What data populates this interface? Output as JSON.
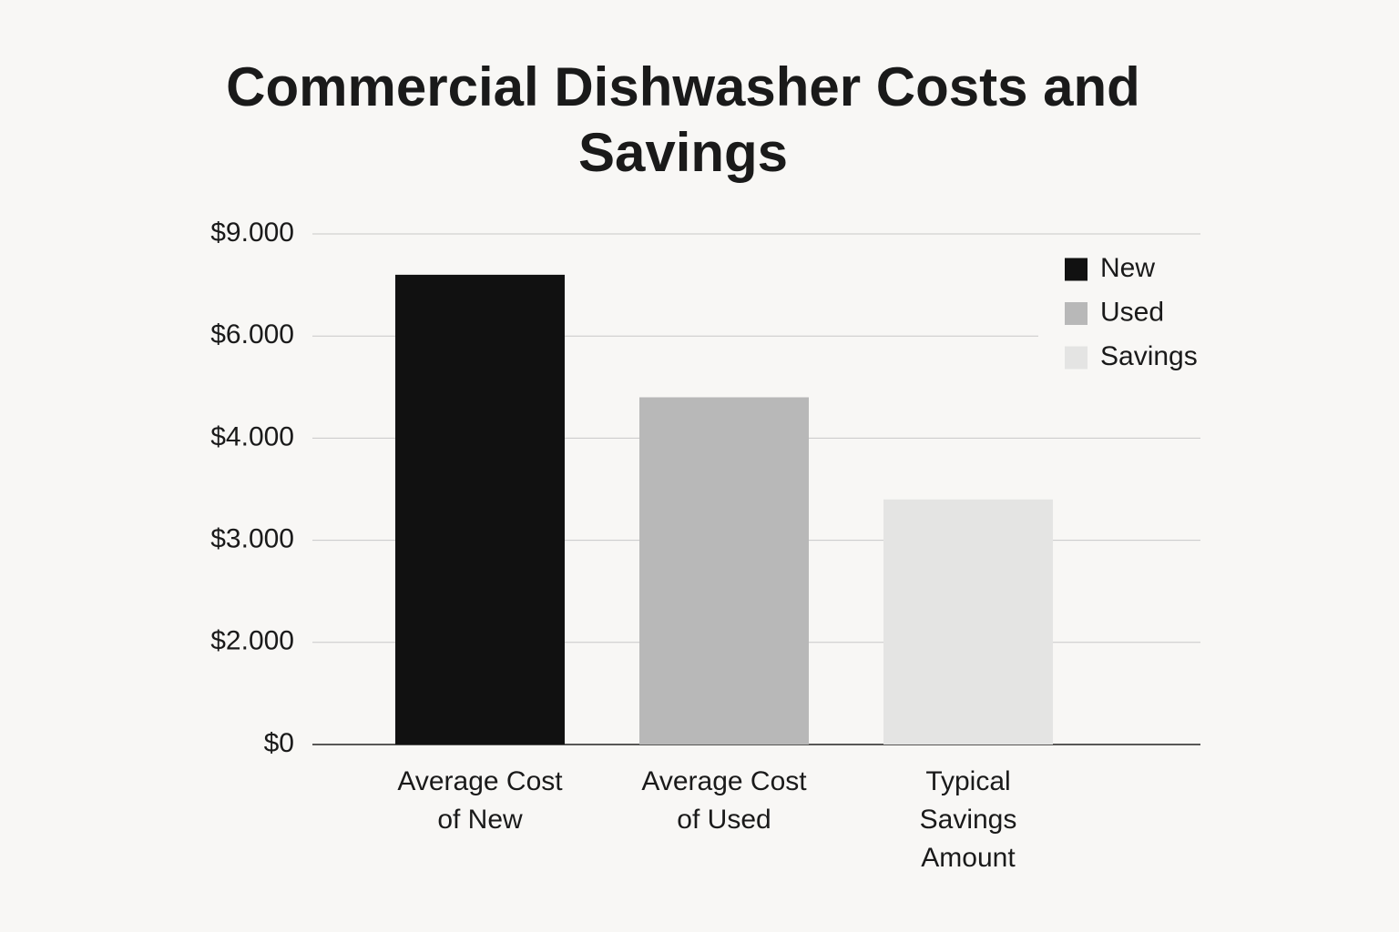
{
  "chart_data": {
    "type": "bar",
    "title": "Commercial Dishwasher Costs and Savings",
    "categories": [
      "Average Cost of New",
      "Average Cost of Used",
      "Typical Savings Amount"
    ],
    "series": [
      {
        "name": "New",
        "color": "#111111",
        "values": [
          7800,
          null,
          null
        ]
      },
      {
        "name": "Used",
        "color": "#b8b8b8",
        "values": [
          null,
          4800,
          null
        ]
      },
      {
        "name": "Savings",
        "color": "#e4e4e3",
        "values": [
          null,
          null,
          3400
        ]
      }
    ],
    "ylim": [
      0,
      9000
    ],
    "yticks": [
      {
        "value": 0,
        "label": "$0"
      },
      {
        "value": 2000,
        "label": "$2.000"
      },
      {
        "value": 3000,
        "label": "$3.000"
      },
      {
        "value": 4000,
        "label": "$4.000"
      },
      {
        "value": 6000,
        "label": "$6.000"
      },
      {
        "value": 9000,
        "label": "$9.000"
      }
    ],
    "grid": true,
    "legend": "top-right"
  }
}
